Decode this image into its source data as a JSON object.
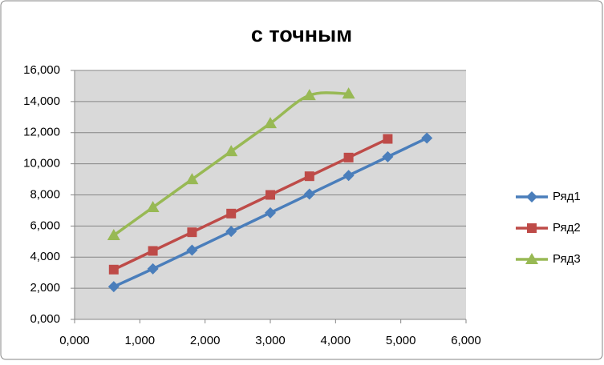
{
  "chart_data": {
    "type": "scatter",
    "title": "с точным",
    "xlim": [
      0,
      6
    ],
    "ylim": [
      0,
      16
    ],
    "xticks": [
      {
        "value": 0,
        "label": "0,000"
      },
      {
        "value": 1,
        "label": "1,000"
      },
      {
        "value": 2,
        "label": "2,000"
      },
      {
        "value": 3,
        "label": "3,000"
      },
      {
        "value": 4,
        "label": "4,000"
      },
      {
        "value": 5,
        "label": "5,000"
      },
      {
        "value": 6,
        "label": "6,000"
      }
    ],
    "yticks": [
      {
        "value": 0,
        "label": "0,000"
      },
      {
        "value": 2,
        "label": "2,000"
      },
      {
        "value": 4,
        "label": "4,000"
      },
      {
        "value": 6,
        "label": "6,000"
      },
      {
        "value": 8,
        "label": "8,000"
      },
      {
        "value": 10,
        "label": "10,000"
      },
      {
        "value": 12,
        "label": "12,000"
      },
      {
        "value": 14,
        "label": "14,000"
      },
      {
        "value": 16,
        "label": "16,000"
      }
    ],
    "grid": true,
    "smooth": true,
    "legend": "right",
    "series": [
      {
        "name": "Ряд1",
        "color": "#4a7ebb",
        "marker": "diamond",
        "x": [
          0.6,
          1.2,
          1.8,
          2.4,
          3.0,
          3.6,
          4.2,
          4.8,
          5.4
        ],
        "values": [
          2.1,
          3.25,
          4.45,
          5.65,
          6.85,
          8.05,
          9.25,
          10.45,
          11.65
        ]
      },
      {
        "name": "Ряд2",
        "color": "#be4b48",
        "marker": "square",
        "x": [
          0.6,
          1.2,
          1.8,
          2.4,
          3.0,
          3.6,
          4.2,
          4.8
        ],
        "values": [
          3.2,
          4.4,
          5.6,
          6.8,
          8.0,
          9.2,
          10.4,
          11.6
        ]
      },
      {
        "name": "Ряд3",
        "color": "#98b954",
        "marker": "triangle",
        "x": [
          0.6,
          1.2,
          1.8,
          2.4,
          3.0,
          3.6,
          4.2
        ],
        "values": [
          5.4,
          7.2,
          9.0,
          10.8,
          12.6,
          14.4,
          14.5
        ]
      }
    ]
  }
}
